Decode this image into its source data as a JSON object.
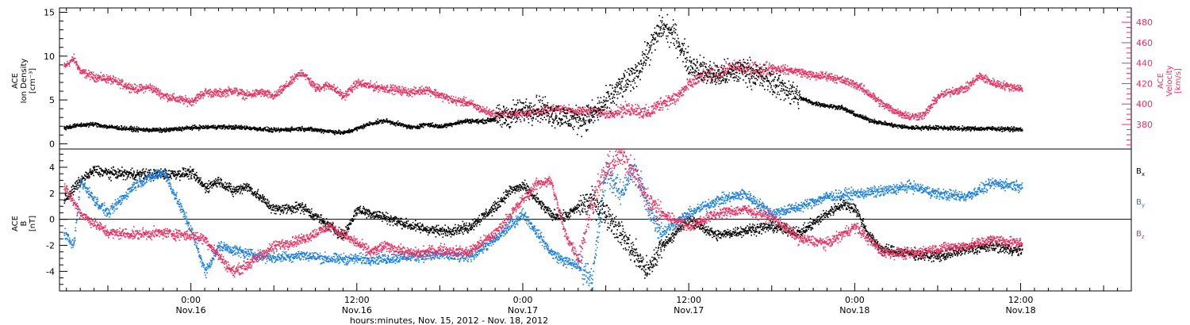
{
  "colors": {
    "black": "#000000",
    "pink": "#e8305f",
    "blue": "#1a7fe0"
  },
  "x_axis": {
    "label": "hours:minutes, Nov. 15, 2012 - Nov. 18, 2012",
    "ticks": [
      {
        "hours": 24,
        "time": "0:00",
        "date": "Nov.16"
      },
      {
        "hours": 36,
        "time": "12:00",
        "date": "Nov.16"
      },
      {
        "hours": 48,
        "time": "0:00",
        "date": "Nov.17"
      },
      {
        "hours": 60,
        "time": "12:00",
        "date": "Nov.17"
      },
      {
        "hours": 72,
        "time": "0:00",
        "date": "Nov.18"
      },
      {
        "hours": 84,
        "time": "12:00",
        "date": "Nov.18"
      }
    ]
  },
  "chart_data": [
    {
      "type": "scatter",
      "panel": "top",
      "xlim": [
        14.5,
        92
      ],
      "ylabel_left": [
        "ACE",
        "Ion Density",
        "[cm⁻³]"
      ],
      "ylim_left": [
        -0.6,
        15.5
      ],
      "yticks_left": [
        0,
        5,
        10,
        15
      ],
      "ylabel_right": [
        "ACE",
        "Velocity",
        "[km/s]"
      ],
      "ylim_right": [
        356,
        494
      ],
      "yticks_right": [
        380,
        400,
        420,
        440,
        460,
        480
      ],
      "series": [
        {
          "color": "black",
          "axis": "left",
          "x": [
            14.8,
            16,
            17,
            18,
            20,
            22,
            24,
            26,
            28,
            30,
            32,
            34,
            35,
            36,
            37,
            38,
            39,
            40,
            41,
            42,
            43,
            44,
            45,
            46,
            47,
            48,
            49,
            50,
            51,
            52,
            53,
            54,
            55,
            56,
            57,
            58,
            59,
            60,
            61,
            62,
            63,
            64,
            65,
            66,
            67,
            68,
            69,
            70,
            71,
            72,
            73,
            74,
            75,
            76,
            78,
            80,
            82,
            84,
            84.1
          ],
          "y": [
            1.9,
            2.2,
            2.3,
            2.0,
            1.7,
            1.6,
            1.9,
            2.0,
            1.9,
            1.6,
            1.8,
            1.5,
            1.3,
            1.8,
            2.4,
            2.7,
            2.3,
            1.9,
            2.3,
            2.0,
            2.4,
            2.7,
            2.6,
            2.9,
            3.3,
            3.9,
            4.2,
            3.6,
            3.0,
            2.8,
            3.3,
            4.8,
            6.5,
            7.8,
            10.5,
            13.5,
            12.3,
            9.2,
            8.4,
            7.8,
            8.1,
            8.6,
            7.7,
            7.1,
            6.3,
            5.3,
            4.7,
            4.4,
            4.2,
            3.4,
            2.8,
            2.4,
            2.1,
            1.9,
            1.9,
            1.8,
            1.8,
            1.7,
            1.6
          ]
        },
        {
          "color": "pink",
          "axis": "right",
          "x": [
            14.8,
            15.5,
            16,
            17,
            18,
            19,
            20,
            21,
            22,
            23,
            24,
            25,
            26,
            27,
            28,
            29,
            30,
            31,
            32,
            33,
            34,
            35,
            36,
            37,
            38,
            39,
            40,
            41,
            42,
            43,
            44,
            45,
            46,
            47,
            48,
            49,
            50,
            51,
            52,
            53,
            54,
            55,
            56,
            57,
            58,
            59,
            60,
            61,
            62,
            63,
            64,
            65,
            66,
            67,
            68,
            69,
            70,
            71,
            72,
            73,
            74,
            75,
            76,
            77,
            78,
            79,
            80,
            81,
            82,
            83,
            84,
            84.1
          ],
          "y": [
            437,
            445,
            432,
            427,
            425,
            420,
            415,
            417,
            409,
            405,
            403,
            412,
            411,
            414,
            409,
            412,
            408,
            420,
            432,
            416,
            419,
            408,
            421,
            418,
            416,
            414,
            412,
            415,
            409,
            404,
            402,
            395,
            390,
            391,
            392,
            393,
            395,
            396,
            393,
            395,
            390,
            394,
            396,
            391,
            402,
            406,
            420,
            428,
            430,
            436,
            435,
            434,
            436,
            434,
            432,
            428,
            428,
            424,
            420,
            411,
            400,
            393,
            388,
            390,
            408,
            413,
            416,
            428,
            421,
            418,
            416,
            411
          ]
        }
      ]
    },
    {
      "type": "scatter",
      "panel": "bottom",
      "xlim": [
        14.5,
        92
      ],
      "ylabel_left": [
        "ACE",
        "B",
        "[nT]"
      ],
      "ylim": [
        -5.5,
        5.4
      ],
      "yticks": [
        -4,
        -2,
        0,
        2,
        4
      ],
      "zero_line": true,
      "series": [
        {
          "name": "Bx",
          "color": "black",
          "x": [
            14.8,
            16,
            17,
            18,
            20,
            22,
            24,
            25,
            26,
            27,
            28,
            30,
            32,
            34,
            35,
            36,
            38,
            40,
            42,
            44,
            46,
            47,
            48,
            49,
            50,
            51,
            52,
            53,
            54,
            55,
            56,
            57,
            58,
            60,
            62,
            64,
            66,
            68,
            70,
            71,
            72,
            73,
            74,
            76,
            78,
            80,
            82,
            84,
            84.1
          ],
          "y": [
            1.5,
            3.0,
            3.8,
            3.6,
            3.5,
            3.5,
            3.6,
            2.5,
            3.0,
            2.2,
            2.6,
            0.8,
            1.0,
            -0.5,
            -1.2,
            0.8,
            0.2,
            -0.5,
            -0.9,
            -0.6,
            1.0,
            2.2,
            2.6,
            1.5,
            0.4,
            0.2,
            1.0,
            1.5,
            0.5,
            -1.0,
            -2.5,
            -4.0,
            -2.0,
            0.0,
            -1.2,
            -0.8,
            -0.5,
            -1.0,
            0.5,
            1.2,
            0.9,
            -1.2,
            -2.3,
            -2.6,
            -2.8,
            -2.3,
            -2.0,
            -2.4,
            -2.2
          ]
        },
        {
          "name": "By",
          "color": "blue",
          "x": [
            14.8,
            15.5,
            16,
            17,
            18,
            20,
            22,
            24,
            25,
            26,
            28,
            30,
            32,
            34,
            36,
            38,
            40,
            42,
            44,
            46,
            48,
            49,
            50,
            51,
            52,
            53,
            54,
            55,
            56,
            57,
            58,
            60,
            62,
            64,
            66,
            68,
            70,
            72,
            74,
            76,
            78,
            80,
            82,
            84,
            84.1
          ],
          "y": [
            -1.0,
            -2.0,
            3.0,
            1.5,
            0.5,
            2.8,
            3.7,
            -0.8,
            -4.0,
            -2.0,
            -2.6,
            -2.9,
            -2.7,
            -3.0,
            -3.0,
            -3.0,
            -2.8,
            -2.7,
            -2.9,
            -1.5,
            0.5,
            -1.0,
            -2.5,
            -3.2,
            -3.5,
            -4.5,
            3.8,
            2.0,
            4.0,
            1.0,
            -1.0,
            0.5,
            1.5,
            2.0,
            0.5,
            1.0,
            1.8,
            2.0,
            2.2,
            2.6,
            2.0,
            1.8,
            2.8,
            2.6,
            2.7
          ]
        },
        {
          "name": "Bz",
          "color": "pink",
          "x": [
            14.8,
            16,
            17,
            18,
            20,
            22,
            24,
            25,
            26,
            27,
            28,
            30,
            32,
            34,
            36,
            37,
            38,
            40,
            42,
            44,
            46,
            48,
            49,
            50,
            51,
            52,
            53,
            54,
            55,
            56,
            57,
            58,
            60,
            62,
            64,
            66,
            68,
            70,
            72,
            74,
            76,
            78,
            80,
            82,
            84,
            84.1
          ],
          "y": [
            2.5,
            0.5,
            -0.3,
            -1.0,
            -1.1,
            -1.0,
            -1.2,
            -1.5,
            -2.8,
            -4.0,
            -3.5,
            -2.0,
            -1.5,
            -0.5,
            -1.8,
            -2.5,
            -2.0,
            -2.6,
            -2.3,
            -2.5,
            -1.0,
            1.6,
            2.8,
            3.0,
            -1.0,
            -3.0,
            1.5,
            3.8,
            5.0,
            3.8,
            1.5,
            0.5,
            -0.5,
            0.5,
            0.8,
            0.2,
            -1.5,
            -1.8,
            -0.5,
            -2.5,
            -2.6,
            -2.2,
            -2.0,
            -1.5,
            -1.8,
            -2.0
          ]
        }
      ],
      "legend": [
        {
          "label": "B",
          "sub": "x",
          "color": "black"
        },
        {
          "label": "B",
          "sub": "y",
          "color": "blue"
        },
        {
          "label": "B",
          "sub": "z",
          "color": "pink"
        }
      ]
    }
  ]
}
